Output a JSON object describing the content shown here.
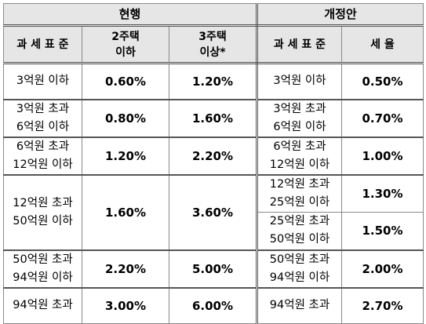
{
  "headers": {
    "current": "현행",
    "proposed": "개정안",
    "tax_base": "과 세 표 준",
    "two_homes": [
      "2주택",
      "이하"
    ],
    "three_homes": [
      "3주택",
      "이상*"
    ],
    "tax_base_new": "과 세 표 준",
    "rate": "세 율"
  },
  "current_rows": [
    {
      "tax_base": [
        "3억원 이하"
      ],
      "two_homes": "0.60%",
      "three_homes": "1.20%"
    },
    {
      "tax_base": [
        "3억원 초과",
        "6억원 이하"
      ],
      "two_homes": "0.80%",
      "three_homes": "1.60%"
    },
    {
      "tax_base": [
        "6억원 초과",
        "12억원 이하"
      ],
      "two_homes": "1.20%",
      "three_homes": "2.20%"
    },
    {
      "tax_base": [
        "12억원 초과",
        "50억원 이하"
      ],
      "two_homes": "1.60%",
      "three_homes": "3.60%"
    },
    {
      "tax_base": [
        "50억원 초과",
        "94억원 이하"
      ],
      "two_homes": "2.20%",
      "three_homes": "5.00%"
    },
    {
      "tax_base": [
        "94억원 초과"
      ],
      "two_homes": "3.00%",
      "three_homes": "6.00%"
    }
  ],
  "proposed_rows": [
    {
      "tax_base": [
        "3억원 이하"
      ],
      "rate": "0.50%"
    },
    {
      "tax_base": [
        "3억원 초과",
        "6억원 이하"
      ],
      "rate": "0.70%"
    },
    {
      "tax_base": [
        "6억원 초과",
        "12억원 이하"
      ],
      "rate": "1.00%"
    },
    {
      "tax_base": [
        "12억원 초과",
        "25억원 이하"
      ],
      "rate": "1.30%"
    },
    {
      "tax_base": [
        "25억원 초과",
        "50억원 이하"
      ],
      "rate": "1.50%"
    },
    {
      "tax_base": [
        "50억원 초과",
        "94억원 이하"
      ],
      "rate": "2.00%"
    },
    {
      "tax_base": [
        "94억원 초과"
      ],
      "rate": "2.70%"
    }
  ]
}
